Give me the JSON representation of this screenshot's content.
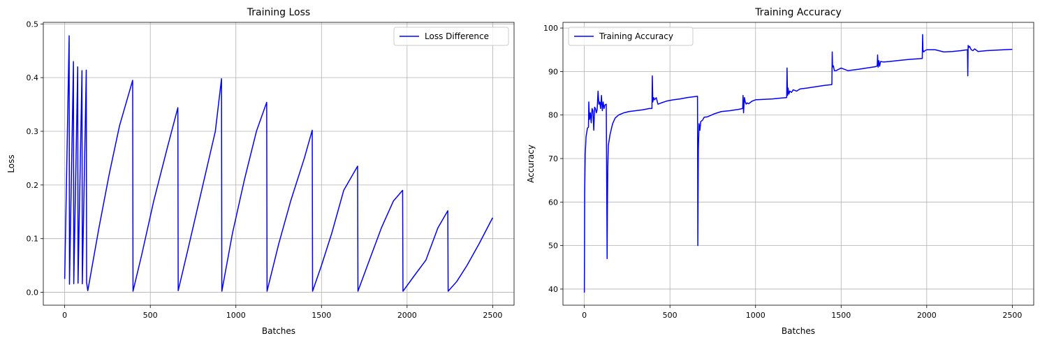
{
  "chart_data": [
    {
      "type": "line",
      "title": "Training Loss",
      "xlabel": "Batches",
      "ylabel": "Loss",
      "xlim": [
        -125,
        2625
      ],
      "ylim": [
        -0.024,
        0.503
      ],
      "xticks": [
        0,
        500,
        1000,
        1500,
        2000,
        2500
      ],
      "yticks": [
        0.0,
        0.1,
        0.2,
        0.3,
        0.4,
        0.5
      ],
      "xtick_labels": [
        "0",
        "500",
        "1000",
        "1500",
        "2000",
        "2500"
      ],
      "ytick_labels": [
        "0.0",
        "0.1",
        "0.2",
        "0.3",
        "0.4",
        "0.5"
      ],
      "grid": true,
      "legend_position": "upper right",
      "series": [
        {
          "name": "Loss Difference",
          "color": "#0000ff",
          "x": [
            0,
            26,
            28,
            51,
            53,
            76,
            78,
            101,
            103,
            126,
            128,
            135,
            200,
            260,
            320,
            397,
            399,
            450,
            520,
            600,
            661,
            663,
            720,
            800,
            880,
            916,
            918,
            980,
            1050,
            1120,
            1180,
            1182,
            1250,
            1320,
            1400,
            1446,
            1448,
            1500,
            1560,
            1630,
            1711,
            1713,
            1780,
            1850,
            1920,
            1974,
            1976,
            2040,
            2110,
            2180,
            2238,
            2240,
            2290,
            2350,
            2420,
            2500
          ],
          "y": [
            0.025,
            0.478,
            0.015,
            0.43,
            0.016,
            0.42,
            0.017,
            0.413,
            0.016,
            0.414,
            0.018,
            0.003,
            0.12,
            0.22,
            0.31,
            0.395,
            0.002,
            0.07,
            0.17,
            0.27,
            0.344,
            0.003,
            0.08,
            0.19,
            0.3,
            0.398,
            0.002,
            0.11,
            0.21,
            0.3,
            0.354,
            0.002,
            0.09,
            0.17,
            0.25,
            0.302,
            0.002,
            0.05,
            0.11,
            0.19,
            0.235,
            0.002,
            0.06,
            0.12,
            0.17,
            0.19,
            0.002,
            0.03,
            0.06,
            0.12,
            0.152,
            0.002,
            0.02,
            0.05,
            0.09,
            0.139
          ]
        }
      ]
    },
    {
      "type": "line",
      "title": "Training Accuracy",
      "xlabel": "Batches",
      "ylabel": "Accuracy",
      "xlim": [
        -125,
        2625
      ],
      "ylim": [
        36.3,
        101.3
      ],
      "xticks": [
        0,
        500,
        1000,
        1500,
        2000,
        2500
      ],
      "yticks": [
        40,
        50,
        60,
        70,
        80,
        90,
        100
      ],
      "xtick_labels": [
        "0",
        "500",
        "1000",
        "1500",
        "2000",
        "2500"
      ],
      "ytick_labels": [
        "40",
        "50",
        "60",
        "70",
        "80",
        "90",
        "100"
      ],
      "grid": true,
      "legend_position": "upper left",
      "series": [
        {
          "name": "Training Accuracy",
          "color": "#0000ff",
          "x": [
            0,
            2,
            5,
            10,
            18,
            24,
            26,
            30,
            35,
            40,
            45,
            50,
            55,
            60,
            65,
            70,
            75,
            80,
            85,
            90,
            95,
            100,
            105,
            110,
            115,
            120,
            128,
            133,
            135,
            137,
            140,
            150,
            165,
            180,
            200,
            230,
            260,
            300,
            340,
            380,
            395,
            397,
            400,
            405,
            410,
            420,
            430,
            450,
            480,
            520,
            560,
            600,
            640,
            661,
            663,
            666,
            670,
            675,
            680,
            690,
            700,
            720,
            760,
            800,
            850,
            900,
            925,
            927,
            930,
            935,
            940,
            945,
            950,
            960,
            980,
            1000,
            1050,
            1100,
            1150,
            1182,
            1184,
            1187,
            1190,
            1195,
            1200,
            1210,
            1220,
            1240,
            1260,
            1300,
            1350,
            1400,
            1446,
            1448,
            1450,
            1455,
            1460,
            1470,
            1500,
            1540,
            1600,
            1650,
            1700,
            1711,
            1713,
            1716,
            1720,
            1725,
            1730,
            1750,
            1780,
            1850,
            1900,
            1974,
            1976,
            1978,
            1982,
            1990,
            2000,
            2050,
            2100,
            2150,
            2200,
            2238,
            2240,
            2242,
            2245,
            2250,
            2260,
            2270,
            2280,
            2300,
            2350,
            2400,
            2450,
            2500
          ],
          "y": [
            39.2,
            62,
            71,
            75,
            77,
            77.2,
            83,
            79,
            80.5,
            78.2,
            81.5,
            81,
            76.5,
            81.8,
            81.5,
            80.5,
            81.3,
            85.5,
            82.5,
            83,
            81.5,
            84.5,
            81,
            83,
            81.5,
            82.3,
            82.5,
            47,
            60,
            68,
            73,
            75.5,
            78,
            79.3,
            80,
            80.5,
            80.8,
            81,
            81.2,
            81.5,
            81.5,
            89,
            83,
            84,
            83.5,
            84,
            82.5,
            82.8,
            83.2,
            83.5,
            83.7,
            84,
            84.2,
            84.3,
            50,
            72,
            78,
            76.5,
            78.5,
            78.8,
            79.5,
            79.6,
            80.3,
            80.8,
            81,
            81.3,
            81.5,
            84.5,
            80.5,
            84,
            83,
            82.5,
            82.8,
            82.6,
            83.2,
            83.5,
            83.6,
            83.7,
            83.9,
            84,
            90.8,
            84.5,
            86.2,
            84.8,
            85.5,
            85.2,
            85.8,
            85.5,
            86,
            86.2,
            86.5,
            86.8,
            87,
            94.5,
            91,
            91.3,
            90.2,
            90.2,
            90.8,
            90.2,
            90.5,
            90.8,
            91.1,
            91.3,
            93.8,
            91,
            92.5,
            91.2,
            92.3,
            92.2,
            92.3,
            92.6,
            92.8,
            93,
            98.5,
            95,
            94.5,
            94.8,
            95,
            95,
            94.5,
            94.6,
            94.8,
            95,
            89,
            96,
            95.5,
            95.8,
            95,
            94.8,
            95.2,
            94.6,
            94.8,
            94.9,
            95,
            95.1
          ]
        }
      ]
    }
  ]
}
